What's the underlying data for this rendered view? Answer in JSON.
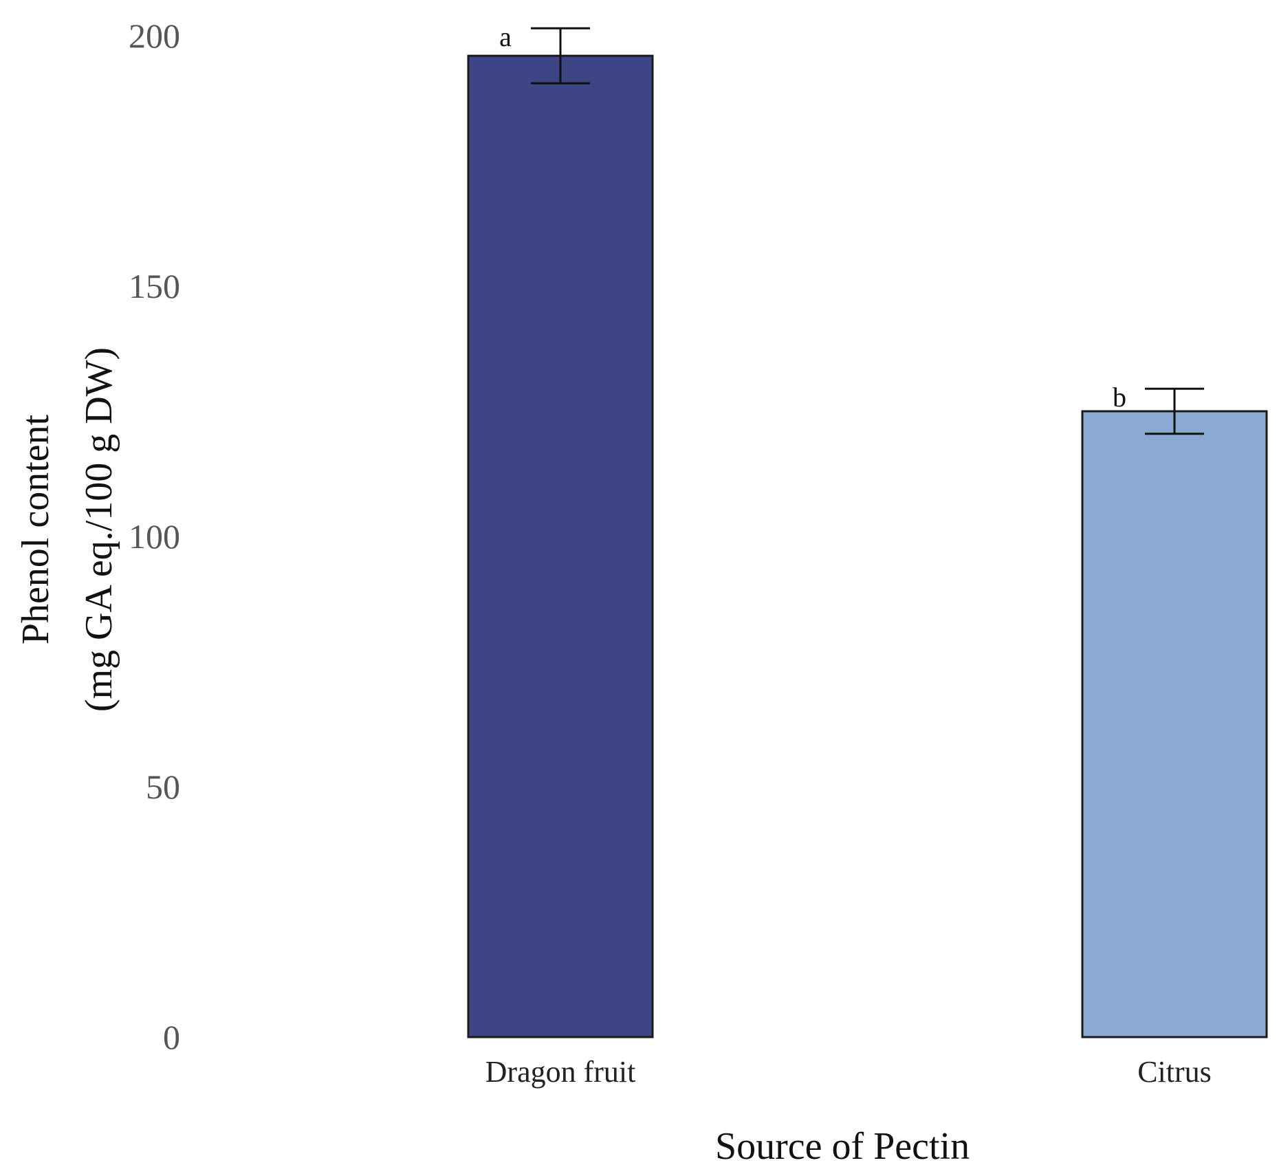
{
  "chart_data": {
    "type": "bar",
    "categories": [
      "Dragon fruit",
      "Citrus"
    ],
    "values": [
      196,
      125
    ],
    "errors": [
      5.5,
      4.5
    ],
    "significance_letters": [
      "a",
      "b"
    ],
    "colors": [
      "#3d4584",
      "#8aaad4"
    ],
    "xlabel": "Source of Pectin",
    "ylabel_lines": [
      "Phenol content",
      "(mg GA eq./100 g DW)"
    ],
    "ylim": [
      0,
      200
    ],
    "yticks": [
      0,
      50,
      100,
      150,
      200
    ],
    "grid": false
  }
}
